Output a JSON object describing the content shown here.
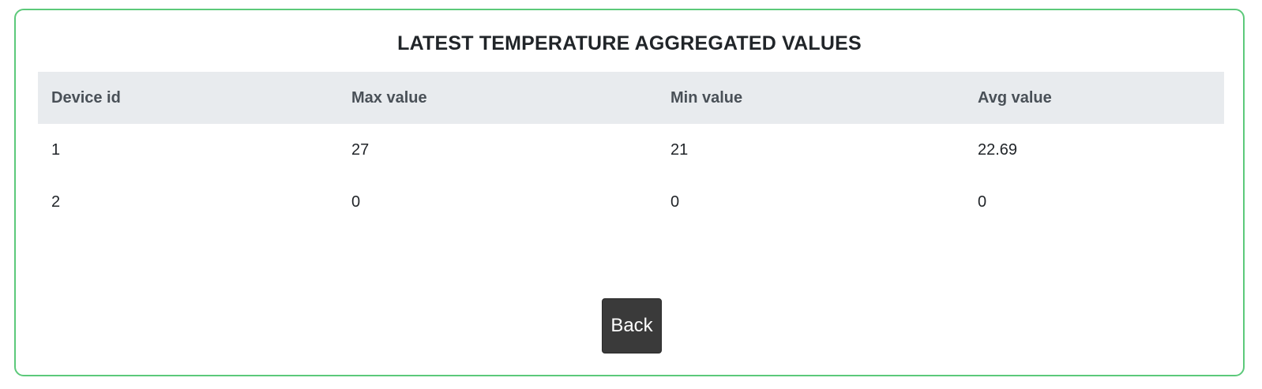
{
  "card": {
    "title": "LATEST TEMPERATURE AGGREGATED VALUES",
    "border_color": "#5cc97a"
  },
  "table": {
    "headers": [
      "Device id",
      "Max value",
      "Min value",
      "Avg value"
    ],
    "rows": [
      [
        "1",
        "27",
        "21",
        "22.69"
      ],
      [
        "2",
        "0",
        "0",
        "0"
      ]
    ]
  },
  "actions": {
    "back_label": "Back"
  }
}
